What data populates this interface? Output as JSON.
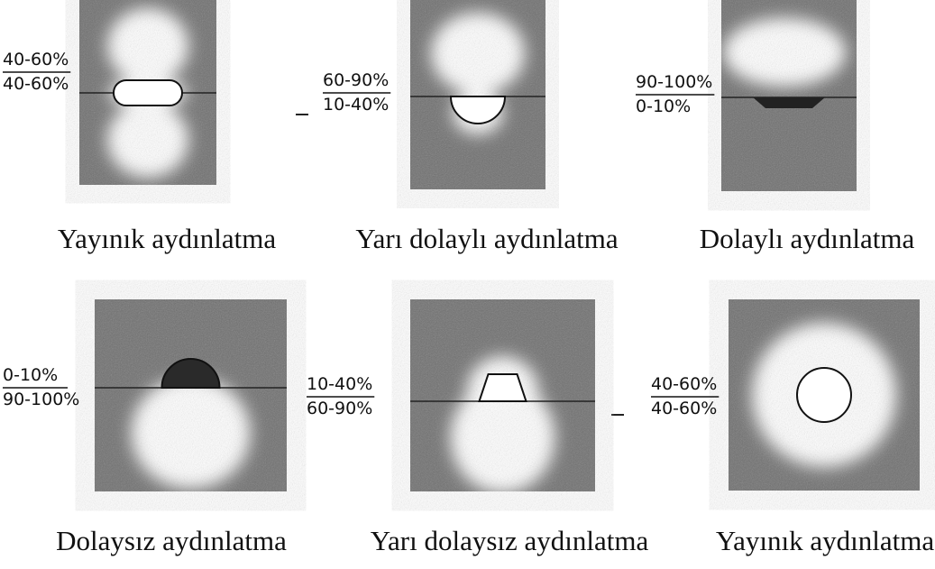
{
  "panels": [
    {
      "upper": "40-60%",
      "lower": "40-60%",
      "caption": "Yayınık aydınlatma"
    },
    {
      "upper": "60-90%",
      "lower": "10-40%",
      "caption": "Yarı dolaylı aydınlatma"
    },
    {
      "upper": "90-100%",
      "lower": "0-10%",
      "caption": "Dolaylı aydınlatma"
    },
    {
      "upper": "0-10%",
      "lower": "90-100%",
      "caption": "Dolaysız aydınlatma"
    },
    {
      "upper": "10-40%",
      "lower": "60-90%",
      "caption": "Yarı dolaysız aydınlatma"
    },
    {
      "upper": "40-60%",
      "lower": "40-60%",
      "caption": "Yayınık aydınlatma"
    }
  ]
}
